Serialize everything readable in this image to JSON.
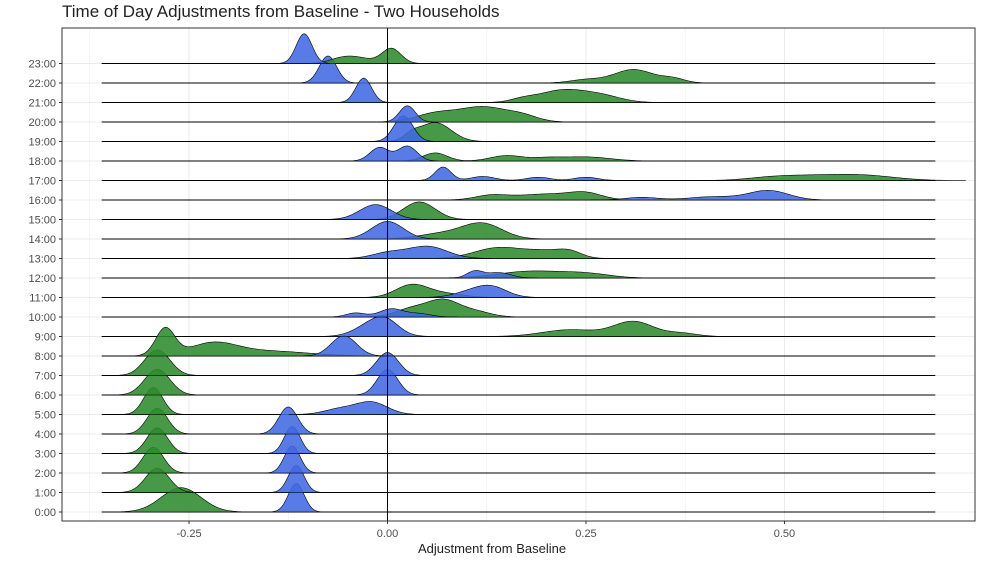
{
  "chart_data": {
    "type": "ridgeline",
    "title": "Time of Day Adjustments from Baseline - Two Households",
    "xlabel": "Adjustment from Baseline",
    "ylabel": "",
    "xlim": [
      -0.41,
      0.74
    ],
    "x_ticks": [
      -0.25,
      0.0,
      0.25,
      0.5
    ],
    "x_tick_labels": [
      "-0.25",
      "0.00",
      "0.25",
      "0.50"
    ],
    "categories": [
      "0:00",
      "1:00",
      "2:00",
      "3:00",
      "4:00",
      "5:00",
      "6:00",
      "7:00",
      "8:00",
      "9:00",
      "10:00",
      "11:00",
      "12:00",
      "13:00",
      "14:00",
      "15:00",
      "16:00",
      "17:00",
      "18:00",
      "19:00",
      "20:00",
      "21:00",
      "22:00",
      "23:00"
    ],
    "grid": true,
    "reference_line_x": 0.0,
    "baseline_range": [
      -0.36,
      0.69
    ],
    "colors": {
      "series_a": "#2e8b2e",
      "series_b": "#4169e1",
      "outline": "#000000",
      "grid": "#ebebeb",
      "panel_border": "#333333"
    },
    "series": [
      {
        "color": "#2e8b2e",
        "density_peaks": [
          [
            [
              -0.26,
              0.025,
              0.9
            ]
          ],
          [
            [
              -0.29,
              0.015,
              0.9
            ]
          ],
          [
            [
              -0.295,
              0.013,
              0.95
            ]
          ],
          [
            [
              -0.29,
              0.013,
              0.95
            ]
          ],
          [
            [
              -0.29,
              0.013,
              0.95
            ]
          ],
          [
            [
              -0.295,
              0.012,
              1.0
            ]
          ],
          [
            [
              -0.29,
              0.016,
              0.95
            ]
          ],
          [
            [
              -0.29,
              0.016,
              0.95
            ]
          ],
          [
            [
              -0.28,
              0.012,
              1.0
            ],
            [
              -0.22,
              0.03,
              0.45
            ],
            [
              -0.15,
              0.05,
              0.18
            ]
          ],
          [
            [
              0.23,
              0.035,
              0.25
            ],
            [
              0.31,
              0.025,
              0.55
            ],
            [
              0.37,
              0.02,
              0.12
            ]
          ],
          [
            [
              0.07,
              0.02,
              0.6
            ],
            [
              0.03,
              0.02,
              0.3
            ],
            [
              0.11,
              0.02,
              0.2
            ]
          ],
          [
            [
              0.03,
              0.02,
              0.45
            ],
            [
              0.07,
              0.025,
              0.15
            ]
          ],
          [
            [
              0.18,
              0.04,
              0.25
            ],
            [
              0.25,
              0.03,
              0.15
            ]
          ],
          [
            [
              0.14,
              0.03,
              0.4
            ],
            [
              0.2,
              0.025,
              0.25
            ],
            [
              0.23,
              0.015,
              0.2
            ]
          ],
          [
            [
              0.12,
              0.025,
              0.55
            ],
            [
              0.07,
              0.03,
              0.2
            ]
          ],
          [
            [
              0.04,
              0.02,
              0.65
            ]
          ],
          [
            [
              0.2,
              0.04,
              0.22
            ],
            [
              0.25,
              0.02,
              0.2
            ],
            [
              0.13,
              0.02,
              0.15
            ]
          ],
          [
            [
              0.53,
              0.04,
              0.15
            ],
            [
              0.6,
              0.04,
              0.18
            ],
            [
              0.48,
              0.03,
              0.08
            ]
          ],
          [
            [
              0.06,
              0.015,
              0.3
            ],
            [
              0.15,
              0.02,
              0.2
            ],
            [
              0.25,
              0.03,
              0.15
            ],
            [
              0.2,
              0.02,
              0.1
            ]
          ],
          [
            [
              0.06,
              0.02,
              0.7
            ],
            [
              0.03,
              0.01,
              0.2
            ]
          ],
          [
            [
              0.12,
              0.03,
              0.55
            ],
            [
              0.06,
              0.025,
              0.3
            ],
            [
              0.17,
              0.02,
              0.2
            ]
          ],
          [
            [
              0.22,
              0.03,
              0.45
            ],
            [
              0.27,
              0.025,
              0.22
            ],
            [
              0.17,
              0.015,
              0.1
            ]
          ],
          [
            [
              0.31,
              0.025,
              0.5
            ],
            [
              0.25,
              0.02,
              0.12
            ],
            [
              0.36,
              0.015,
              0.15
            ]
          ],
          [
            [
              0.005,
              0.012,
              0.55
            ],
            [
              -0.04,
              0.02,
              0.22
            ],
            [
              -0.06,
              0.015,
              0.1
            ]
          ]
        ]
      },
      {
        "color": "#4169e1",
        "density_peaks": [
          [
            [
              -0.115,
              0.01,
              1.05
            ]
          ],
          [
            [
              -0.115,
              0.01,
              1.0
            ]
          ],
          [
            [
              -0.12,
              0.01,
              1.0
            ]
          ],
          [
            [
              -0.12,
              0.01,
              1.0
            ]
          ],
          [
            [
              -0.125,
              0.012,
              1.0
            ]
          ],
          [
            [
              -0.02,
              0.02,
              0.45
            ],
            [
              -0.06,
              0.02,
              0.2
            ]
          ],
          [
            [
              0.0,
              0.013,
              0.95
            ]
          ],
          [
            [
              0.0,
              0.014,
              0.85
            ]
          ],
          [
            [
              -0.055,
              0.016,
              0.75
            ]
          ],
          [
            [
              -0.015,
              0.022,
              0.55
            ],
            [
              0.0,
              0.015,
              0.25
            ]
          ],
          [
            [
              0.005,
              0.015,
              0.3
            ],
            [
              -0.04,
              0.012,
              0.15
            ],
            [
              0.04,
              0.015,
              0.12
            ]
          ],
          [
            [
              0.13,
              0.02,
              0.4
            ],
            [
              0.1,
              0.02,
              0.15
            ]
          ],
          [
            [
              0.11,
              0.01,
              0.25
            ],
            [
              0.14,
              0.015,
              0.2
            ]
          ],
          [
            [
              0.05,
              0.025,
              0.45
            ],
            [
              0.0,
              0.02,
              0.2
            ]
          ],
          [
            [
              0.0,
              0.02,
              0.65
            ]
          ],
          [
            [
              -0.015,
              0.02,
              0.55
            ]
          ],
          [
            [
              0.48,
              0.025,
              0.35
            ],
            [
              0.41,
              0.03,
              0.12
            ],
            [
              0.32,
              0.02,
              0.1
            ]
          ],
          [
            [
              0.07,
              0.01,
              0.5
            ],
            [
              0.12,
              0.015,
              0.15
            ],
            [
              0.19,
              0.015,
              0.12
            ],
            [
              0.25,
              0.015,
              0.12
            ]
          ],
          [
            [
              -0.01,
              0.012,
              0.5
            ],
            [
              0.025,
              0.012,
              0.55
            ]
          ],
          [
            [
              0.02,
              0.012,
              0.95
            ]
          ],
          [
            [
              0.025,
              0.01,
              0.6
            ]
          ],
          [
            [
              -0.03,
              0.01,
              0.9
            ]
          ],
          [
            [
              -0.075,
              0.011,
              1.0
            ]
          ],
          [
            [
              -0.105,
              0.01,
              1.1
            ]
          ]
        ]
      }
    ]
  }
}
